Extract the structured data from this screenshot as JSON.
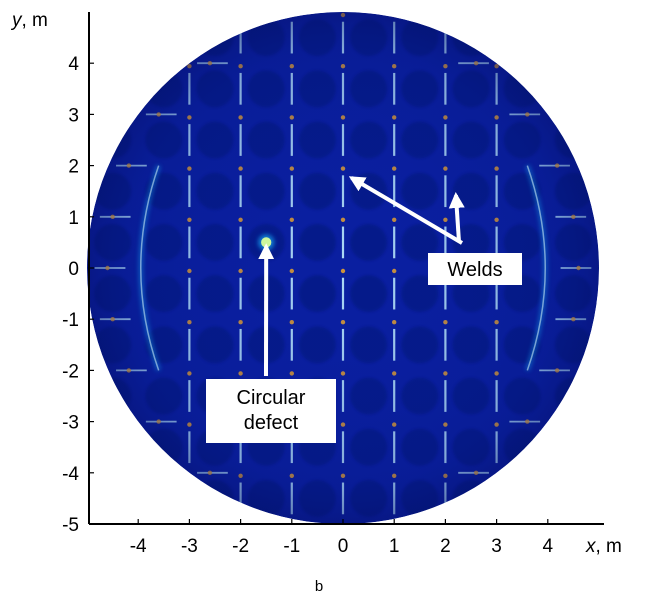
{
  "chart_data": {
    "type": "heatmap",
    "title": "",
    "xlabel": "x, m",
    "ylabel": "y, m",
    "x_label_parts": {
      "var": "x",
      "unit": ", m"
    },
    "y_label_parts": {
      "var": "y",
      "unit": ", m"
    },
    "xlim": [
      -5,
      5
    ],
    "ylim": [
      -5,
      5
    ],
    "x_ticks": [
      -4,
      -3,
      -2,
      -1,
      0,
      1,
      2,
      3,
      4
    ],
    "y_ticks": [
      4,
      3,
      2,
      1,
      0,
      -1,
      -2,
      -3,
      -4,
      -5
    ],
    "domain": {
      "shape": "circle",
      "center": [
        0,
        0
      ],
      "radius_m": 5
    },
    "colors": {
      "background": "#0a1fa0",
      "dark": "#04126e",
      "weld_core": "#bfefff",
      "weld_glow": "#17b8ff",
      "weld_hot": "#ffb020"
    },
    "welds_vertical": {
      "x_values": [
        -3,
        -2,
        -1,
        0,
        1,
        2,
        3
      ],
      "y_range": [
        -5,
        5
      ],
      "grid_spacing_m": 1
    },
    "welds_horizontal_stubs": {
      "y_values": [
        -4,
        -3,
        -2,
        -1,
        0,
        1,
        2,
        3,
        4
      ],
      "grid_spacing_m": 1
    },
    "defect": {
      "type": "circular",
      "x": -1.5,
      "y": 0.5,
      "radius_m": 0.1
    },
    "annotations": [
      {
        "text_lines": [
          "Circular",
          "defect"
        ],
        "arrow_targets": [
          [
            -1.5,
            0.5
          ]
        ]
      },
      {
        "text_lines": [
          "Welds"
        ],
        "arrow_targets": [
          [
            0.1,
            1.8
          ],
          [
            2.2,
            1.5
          ]
        ]
      }
    ],
    "panel_label": "b"
  }
}
